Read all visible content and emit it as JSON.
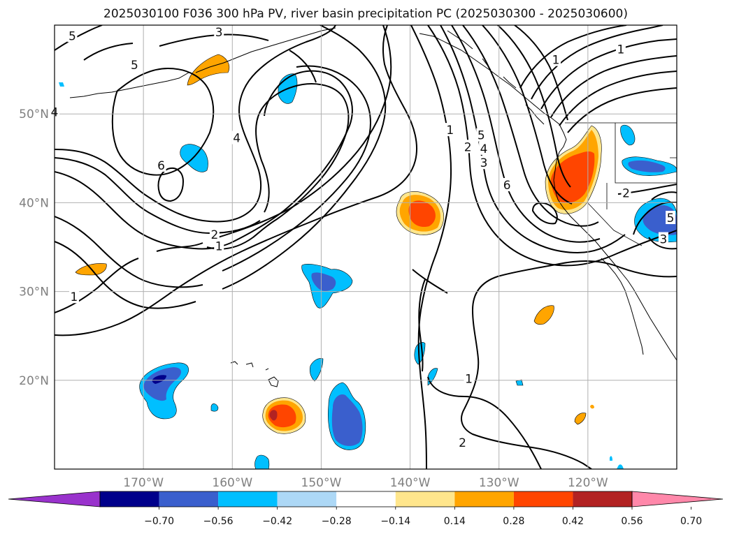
{
  "title": "2025030100 F036 300 hPa PV, river basin precipitation PC (2025030300 - 2025030600)",
  "map": {
    "lon_range": [
      -180,
      -110
    ],
    "lat_range": [
      10,
      60
    ],
    "lon_ticks": [
      {
        "value": -170,
        "label": "170°W"
      },
      {
        "value": -160,
        "label": "160°W"
      },
      {
        "value": -150,
        "label": "150°W"
      },
      {
        "value": -140,
        "label": "140°W"
      },
      {
        "value": -130,
        "label": "130°W"
      },
      {
        "value": -120,
        "label": "120°W"
      }
    ],
    "lat_ticks": [
      {
        "value": 20,
        "label": "20°N"
      },
      {
        "value": 30,
        "label": "30°N"
      },
      {
        "value": 40,
        "label": "40°N"
      },
      {
        "value": 50,
        "label": "50°N"
      }
    ],
    "grid": true
  },
  "colorbar": {
    "ticks": [
      "−0.70",
      "−0.56",
      "−0.42",
      "−0.28",
      "−0.14",
      "0.14",
      "0.28",
      "0.42",
      "0.56",
      "0.70"
    ],
    "colors": [
      "#9932cc",
      "#00008b",
      "#3a5fcd",
      "#00bfff",
      "#add8f6",
      "#ffffff",
      "#ffe68c",
      "#ffa500",
      "#ff4500",
      "#b22222",
      "#ff88aa"
    ]
  },
  "contour_labels": [
    {
      "text": "5",
      "lon": -178,
      "lat": 58.8
    },
    {
      "text": "3",
      "lon": -161.5,
      "lat": 59.2
    },
    {
      "text": "5",
      "lon": -171,
      "lat": 55.5
    },
    {
      "text": "4",
      "lon": -180,
      "lat": 50.2
    },
    {
      "text": "4",
      "lon": -159.5,
      "lat": 47.3
    },
    {
      "text": "6",
      "lon": -168,
      "lat": 44.2
    },
    {
      "text": "2",
      "lon": -162,
      "lat": 36.4
    },
    {
      "text": "1",
      "lon": -161.5,
      "lat": 35.1
    },
    {
      "text": "1",
      "lon": -177.8,
      "lat": 29.4
    },
    {
      "text": "1",
      "lon": -135.5,
      "lat": 48.2
    },
    {
      "text": "2",
      "lon": -133.5,
      "lat": 46.3
    },
    {
      "text": "5",
      "lon": -132,
      "lat": 47.6
    },
    {
      "text": "4",
      "lon": -131.7,
      "lat": 46.1
    },
    {
      "text": "3",
      "lon": -131.7,
      "lat": 44.5
    },
    {
      "text": "6",
      "lon": -129.1,
      "lat": 42.0
    },
    {
      "text": "1",
      "lon": -123.6,
      "lat": 56.1
    },
    {
      "text": "1",
      "lon": -116.3,
      "lat": 57.3
    },
    {
      "text": "2",
      "lon": -115.7,
      "lat": 41.1
    },
    {
      "text": "5",
      "lon": -110.7,
      "lat": 38.3
    },
    {
      "text": "3",
      "lon": -111.5,
      "lat": 35.9
    },
    {
      "text": "1",
      "lon": -133.4,
      "lat": 20.2
    },
    {
      "text": "2",
      "lon": -134.1,
      "lat": 13.0
    }
  ],
  "precip_anomalies": [
    {
      "sign": "positive",
      "lon": -159.5,
      "lat": 55.0
    },
    {
      "sign": "positive",
      "lon": -140.0,
      "lat": 38.5
    },
    {
      "sign": "positive",
      "lon": -121.0,
      "lat": 42.5
    },
    {
      "sign": "positive",
      "lon": -155.0,
      "lat": 16.0
    },
    {
      "sign": "positive",
      "lon": -173.5,
      "lat": 32.0
    },
    {
      "sign": "positive",
      "lon": -127.5,
      "lat": 27.5
    },
    {
      "sign": "positive",
      "lon": -123.0,
      "lat": 15.5
    },
    {
      "sign": "negative",
      "lon": -168.0,
      "lat": 19.5
    },
    {
      "sign": "negative",
      "lon": -146.5,
      "lat": 15.0
    },
    {
      "sign": "negative",
      "lon": -148.5,
      "lat": 31.5
    },
    {
      "sign": "negative",
      "lon": -112.5,
      "lat": 38.0
    },
    {
      "sign": "negative",
      "lon": -114.0,
      "lat": 44.0
    }
  ]
}
